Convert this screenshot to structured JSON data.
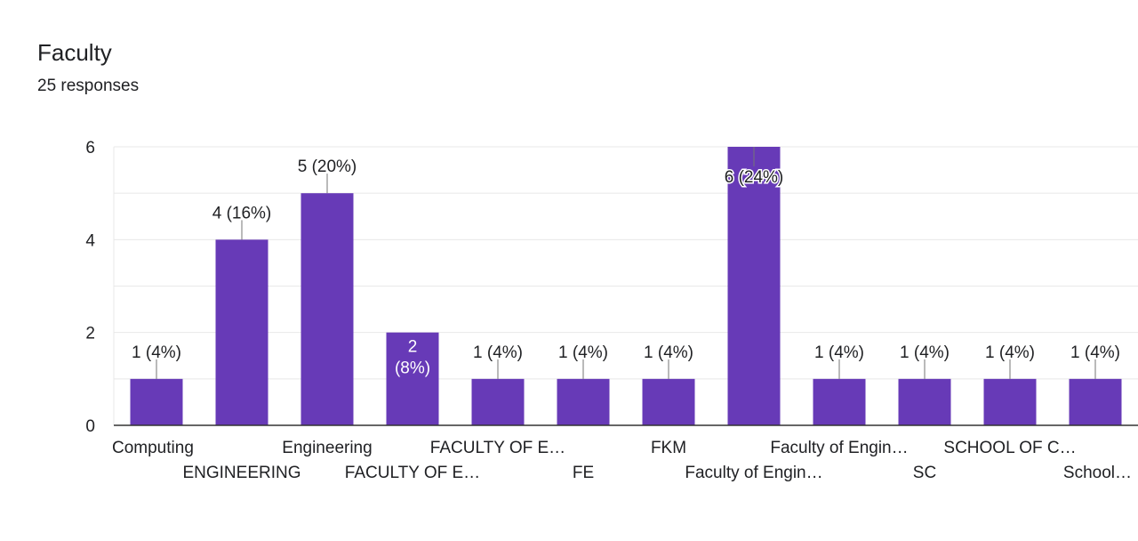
{
  "header": {
    "title": "Faculty",
    "subtitle": "25 responses"
  },
  "colors": {
    "bar": "#673ab7",
    "grid": "#e8e8e8",
    "axis": "#333333",
    "text": "#202124",
    "leader": "#757575",
    "inside_label": "#ffffff"
  },
  "chart_data": {
    "type": "bar",
    "categories": [
      "Computing",
      "ENGINEERING",
      "Engineering",
      "FACULTY OF E…",
      "FACULTY OF E…",
      "FE",
      "FKM",
      "Faculty of Engin…",
      "Faculty of Engin…",
      "SC",
      "SCHOOL OF C…",
      "School…"
    ],
    "values": [
      1,
      4,
      5,
      2,
      1,
      1,
      1,
      6,
      1,
      1,
      1,
      1
    ],
    "data_labels": [
      "1 (4%)",
      "4 (16%)",
      "5 (20%)",
      "2 (8%)",
      "1 (4%)",
      "1 (4%)",
      "1 (4%)",
      "6 (24%)",
      "1 (4%)",
      "1 (4%)",
      "1 (4%)",
      "1 (4%)"
    ],
    "ylim": [
      0,
      6
    ],
    "y_ticks": [
      0,
      2,
      4,
      6
    ],
    "grid": true,
    "legend": "none",
    "xlabel": "",
    "ylabel": ""
  }
}
